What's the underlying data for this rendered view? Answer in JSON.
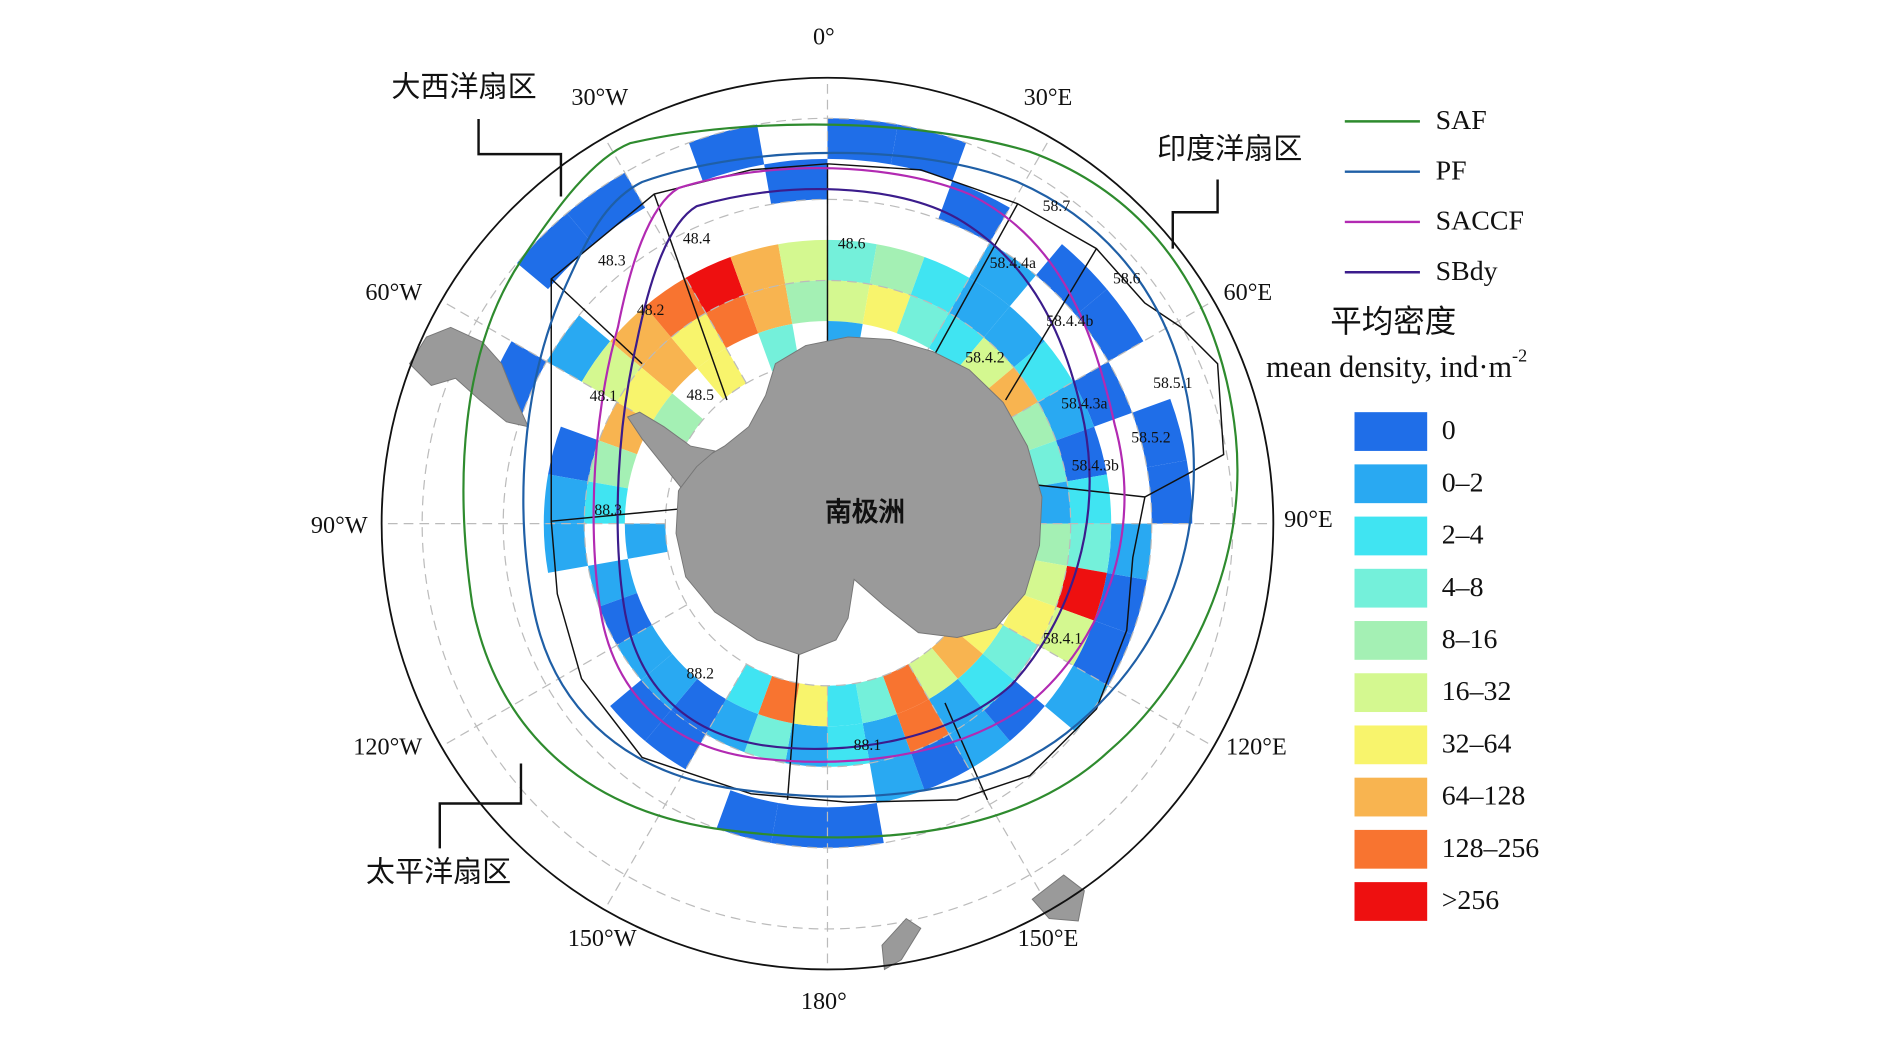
{
  "meridian_labels": [
    "0°",
    "30°E",
    "60°E",
    "90°E",
    "120°E",
    "150°E",
    "180°",
    "150°W",
    "120°W",
    "90°W",
    "60°W",
    "30°W"
  ],
  "sectors": [
    "大西洋扇区",
    "印度洋扇区",
    "太平洋扇区"
  ],
  "continent": "南极洲",
  "regions": [
    "48.3",
    "48.4",
    "48.6",
    "48.2",
    "48.1",
    "48.5",
    "88.3",
    "88.2",
    "88.1",
    "58.7",
    "58.4.4a",
    "58.6",
    "58.4.4b",
    "58.4.2",
    "58.5.1",
    "58.4.3a",
    "58.5.2",
    "58.4.3b",
    "58.4.1"
  ],
  "fronts": [
    {
      "name": "SAF",
      "color": "#2e8b2e"
    },
    {
      "name": "PF",
      "color": "#1f5fa6"
    },
    {
      "name": "SACCF",
      "color": "#b22ab2"
    },
    {
      "name": "SBdy",
      "color": "#3b1c8c"
    }
  ],
  "legend": {
    "title": "平均密度",
    "subtitle": "mean density, ind·m",
    "subtitle_sup": "-2",
    "classes": [
      {
        "label": "0",
        "color": "#1f6ee8"
      },
      {
        "label": "0–2",
        "color": "#29a9f2"
      },
      {
        "label": "2–4",
        "color": "#40e4f2"
      },
      {
        "label": "4–8",
        "color": "#74f0da"
      },
      {
        "label": "8–16",
        "color": "#a4f0b4"
      },
      {
        "label": "16–32",
        "color": "#d4f890"
      },
      {
        "label": "32–64",
        "color": "#f8f46c"
      },
      {
        "label": "64–128",
        "color": "#f8b450"
      },
      {
        "label": "128–256",
        "color": "#f87430"
      },
      {
        "label": ">256",
        "color": "#ee1010"
      }
    ]
  },
  "cells": [
    [
      0,
      -40,
      0
    ],
    [
      10,
      -40,
      0
    ],
    [
      20,
      -45,
      0
    ],
    [
      -20,
      -40,
      0
    ],
    [
      -10,
      -45,
      0
    ],
    [
      -40,
      -40,
      0
    ],
    [
      -50,
      -40,
      0
    ],
    [
      -60,
      -50,
      1
    ],
    [
      -70,
      -45,
      0
    ],
    [
      -80,
      -55,
      0
    ],
    [
      -90,
      -55,
      1
    ],
    [
      -100,
      -55,
      1
    ],
    [
      -110,
      -60,
      1
    ],
    [
      -120,
      -60,
      0
    ],
    [
      -130,
      -60,
      1
    ],
    [
      -140,
      -55,
      0
    ],
    [
      -150,
      -55,
      0
    ],
    [
      -170,
      -50,
      0
    ],
    [
      -180,
      -50,
      0
    ],
    [
      170,
      -50,
      0
    ],
    [
      160,
      -55,
      1
    ],
    [
      150,
      -55,
      0
    ],
    [
      140,
      -55,
      1
    ],
    [
      130,
      -55,
      0
    ],
    [
      120,
      -50,
      1
    ],
    [
      110,
      -50,
      0
    ],
    [
      100,
      -50,
      0
    ],
    [
      90,
      -50,
      1
    ],
    [
      80,
      -45,
      0
    ],
    [
      70,
      -45,
      0
    ],
    [
      60,
      -50,
      0
    ],
    [
      50,
      -45,
      0
    ],
    [
      40,
      -45,
      0
    ],
    [
      30,
      -50,
      1
    ],
    [
      -50,
      -55,
      7
    ],
    [
      -40,
      -55,
      8
    ],
    [
      -30,
      -55,
      9
    ],
    [
      -20,
      -55,
      7
    ],
    [
      -10,
      -55,
      5
    ],
    [
      0,
      -55,
      3
    ],
    [
      10,
      -55,
      4
    ],
    [
      20,
      -55,
      2
    ],
    [
      30,
      -55,
      1
    ],
    [
      40,
      -55,
      1
    ],
    [
      50,
      -55,
      2
    ],
    [
      60,
      -55,
      1
    ],
    [
      70,
      -55,
      0
    ],
    [
      80,
      -55,
      2
    ],
    [
      90,
      -55,
      3
    ],
    [
      100,
      -55,
      9
    ],
    [
      110,
      -55,
      5
    ],
    [
      120,
      -60,
      3
    ],
    [
      130,
      -60,
      2
    ],
    [
      140,
      -60,
      1
    ],
    [
      150,
      -60,
      8
    ],
    [
      160,
      -60,
      1
    ],
    [
      170,
      -60,
      2
    ],
    [
      180,
      -60,
      1
    ],
    [
      -170,
      -60,
      3
    ],
    [
      -160,
      -60,
      1
    ],
    [
      -150,
      -60,
      0
    ],
    [
      -140,
      -60,
      1
    ],
    [
      -60,
      -55,
      5
    ],
    [
      -70,
      -60,
      7
    ],
    [
      -80,
      -60,
      4
    ],
    [
      -90,
      -60,
      2
    ],
    [
      -50,
      -60,
      7
    ],
    [
      -40,
      -60,
      6
    ],
    [
      -30,
      -60,
      8
    ],
    [
      -20,
      -60,
      7
    ],
    [
      -10,
      -60,
      4
    ],
    [
      0,
      -60,
      5
    ],
    [
      10,
      -60,
      6
    ],
    [
      20,
      -60,
      3
    ],
    [
      30,
      -60,
      2
    ],
    [
      40,
      -60,
      5
    ],
    [
      50,
      -60,
      7
    ],
    [
      60,
      -60,
      4
    ],
    [
      70,
      -60,
      3
    ],
    [
      80,
      -60,
      1
    ],
    [
      90,
      -60,
      4
    ],
    [
      100,
      -60,
      5
    ],
    [
      110,
      -60,
      6
    ],
    [
      120,
      -65,
      6
    ],
    [
      130,
      -65,
      7
    ],
    [
      140,
      -65,
      5
    ],
    [
      150,
      -65,
      8
    ],
    [
      160,
      -65,
      3
    ],
    [
      170,
      -65,
      2
    ],
    [
      -180,
      -65,
      6
    ],
    [
      -170,
      -65,
      8
    ],
    [
      -160,
      -65,
      2
    ],
    [
      -100,
      -65,
      1
    ],
    [
      -60,
      -60,
      6
    ],
    [
      -60,
      -65,
      4
    ],
    [
      -40,
      -65,
      6
    ],
    [
      -20,
      -65,
      3
    ],
    [
      0,
      -65,
      1
    ],
    [
      60,
      -65,
      4
    ],
    [
      90,
      -65,
      5
    ]
  ]
}
